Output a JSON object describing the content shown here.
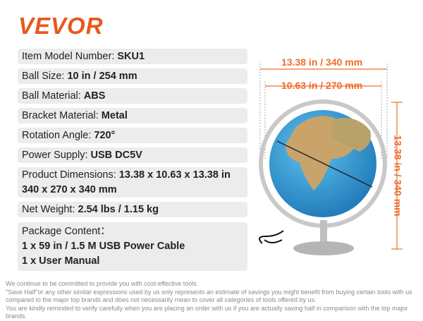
{
  "brand": "VEVOR",
  "specs": [
    {
      "label": "Item Model Number:",
      "value": "SKU1"
    },
    {
      "label": "Ball Size:",
      "value": "10 in / 254 mm"
    },
    {
      "label": "Ball Material:",
      "value": "ABS"
    },
    {
      "label": "Bracket Material:",
      "value": "Metal"
    },
    {
      "label": "Rotation Angle:",
      "value": "720°"
    },
    {
      "label": "Power Supply:",
      "value": "USB DC5V"
    },
    {
      "label": "Product Dimensions:",
      "value": "13.38 x 10.63 x 13.38 in",
      "value2": "340 x 270 x 340 mm"
    },
    {
      "label": "Net Weight:",
      "value": "2.54 lbs / 1.15 kg"
    },
    {
      "label": "Package Content：",
      "value": "1 x 59 in / 1.5 M USB Power Cable",
      "value2": "1 x User Manual"
    }
  ],
  "dimensions": {
    "outer_width": "13.38 in / 340 mm",
    "inner_width": "10.63 in / 270 mm",
    "height": "13.38 in / 340 mm"
  },
  "disclaimer": [
    "We continue to be committed to provide you with cost-effective tools.",
    "\"Save Half\"or any other similar expressions used by us only represents an estimate of savings you might benefit from buying certain tools with us",
    "compared to the major top brands and does not necessarily mean to cover all categories of tools offered by us.",
    "You are kindly reminded to verify carefully when you are placing an order with us if you are actually saving half in comparison with the top major brands."
  ],
  "colors": {
    "brand": "#e8581c",
    "dimension": "#ef6d2c",
    "row_bg": "#ececec"
  }
}
